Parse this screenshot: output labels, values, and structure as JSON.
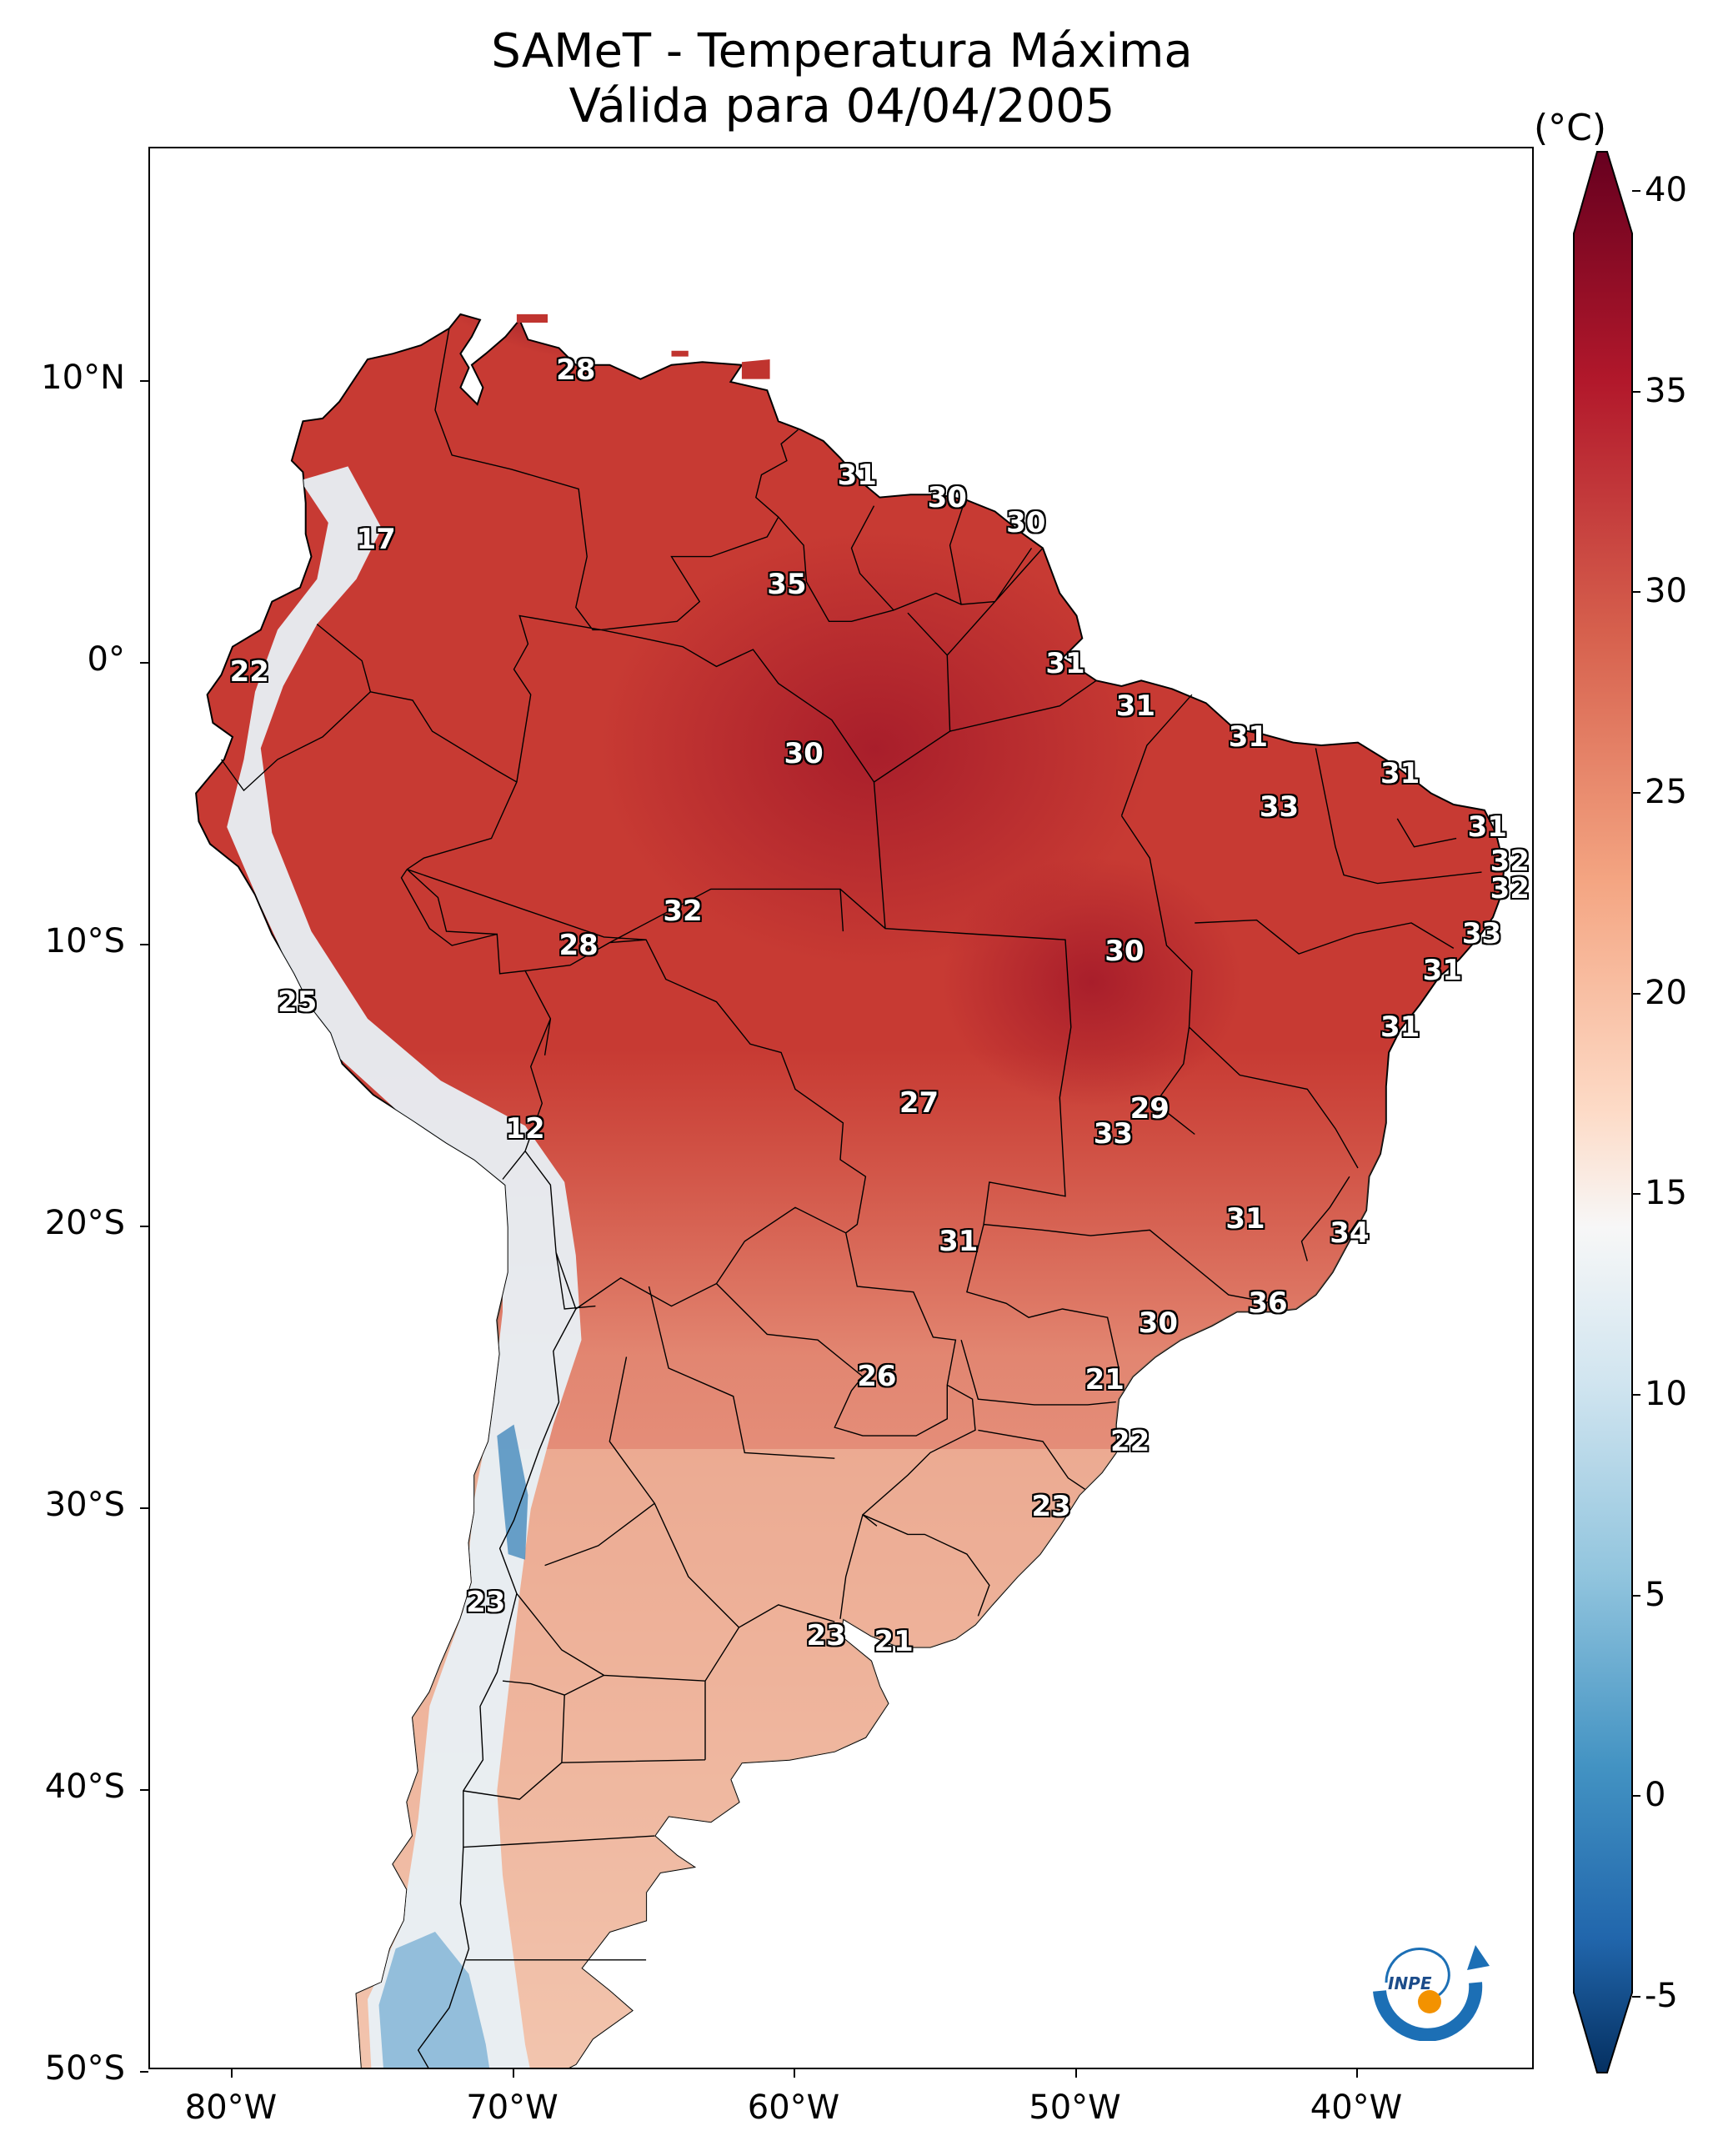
{
  "title": {
    "line1": "SAMeT - Temperatura Máxima",
    "line2": "Válida para 04/04/2005"
  },
  "axes": {
    "lat_ticks": [
      "10°N",
      "0°",
      "10°S",
      "20°S",
      "30°S",
      "40°S",
      "50°S"
    ],
    "lon_ticks": [
      "80°W",
      "70°W",
      "60°W",
      "50°W",
      "40°W"
    ]
  },
  "colorbar": {
    "unit": "(°C)",
    "range": [
      -7,
      41
    ],
    "ticks": [
      "40",
      "35",
      "30",
      "25",
      "20",
      "15",
      "10",
      "5",
      "0",
      "-5"
    ],
    "colors": {
      "dark_red": "#67001f",
      "red": "#b2182b",
      "orange_red": "#d6604d",
      "salmon": "#f4a582",
      "peach": "#fddbc7",
      "white": "#f7f7f7",
      "light_blue": "#d1e5f0",
      "sky_blue": "#92c5de",
      "blue": "#4393c3",
      "mid_blue": "#2166ac",
      "dark_blue": "#053061"
    }
  },
  "logo": {
    "text": "INPE"
  },
  "station_values": [
    {
      "label": "28",
      "lon": -67.8,
      "lat": 10.4
    },
    {
      "label": "31",
      "lon": -57.8,
      "lat": 6.7
    },
    {
      "label": "30",
      "lon": -54.6,
      "lat": 5.9
    },
    {
      "label": "30",
      "lon": -51.8,
      "lat": 5.0
    },
    {
      "label": "17",
      "lon": -74.9,
      "lat": 4.4
    },
    {
      "label": "35",
      "lon": -60.3,
      "lat": 2.8
    },
    {
      "label": "22",
      "lon": -79.4,
      "lat": -0.3
    },
    {
      "label": "31",
      "lon": -50.4,
      "lat": 0.0
    },
    {
      "label": "31",
      "lon": -47.9,
      "lat": -1.5
    },
    {
      "label": "31",
      "lon": -43.9,
      "lat": -2.6
    },
    {
      "label": "30",
      "lon": -59.7,
      "lat": -3.2
    },
    {
      "label": "31",
      "lon": -38.5,
      "lat": -3.9
    },
    {
      "label": "33",
      "lon": -42.8,
      "lat": -5.1
    },
    {
      "label": "31",
      "lon": -35.4,
      "lat": -5.8
    },
    {
      "label": "32",
      "lon": -34.6,
      "lat": -7.0
    },
    {
      "label": "32",
      "lon": -34.6,
      "lat": -8.0
    },
    {
      "label": "32",
      "lon": -64.0,
      "lat": -8.8
    },
    {
      "label": "33",
      "lon": -35.6,
      "lat": -9.6
    },
    {
      "label": "28",
      "lon": -67.7,
      "lat": -10.0
    },
    {
      "label": "30",
      "lon": -48.3,
      "lat": -10.2
    },
    {
      "label": "31",
      "lon": -37.0,
      "lat": -10.9
    },
    {
      "label": "25",
      "lon": -77.7,
      "lat": -12.0
    },
    {
      "label": "31",
      "lon": -38.5,
      "lat": -12.9
    },
    {
      "label": "27",
      "lon": -55.6,
      "lat": -15.6
    },
    {
      "label": "29",
      "lon": -47.4,
      "lat": -15.8
    },
    {
      "label": "12",
      "lon": -69.6,
      "lat": -16.5
    },
    {
      "label": "33",
      "lon": -48.7,
      "lat": -16.7
    },
    {
      "label": "31",
      "lon": -44.0,
      "lat": -19.7
    },
    {
      "label": "34",
      "lon": -40.3,
      "lat": -20.2
    },
    {
      "label": "31",
      "lon": -54.2,
      "lat": -20.5
    },
    {
      "label": "36",
      "lon": -43.2,
      "lat": -22.7
    },
    {
      "label": "30",
      "lon": -47.1,
      "lat": -23.4
    },
    {
      "label": "26",
      "lon": -57.1,
      "lat": -25.3
    },
    {
      "label": "21",
      "lon": -49.0,
      "lat": -25.4
    },
    {
      "label": "22",
      "lon": -48.1,
      "lat": -27.6
    },
    {
      "label": "23",
      "lon": -50.9,
      "lat": -29.9
    },
    {
      "label": "23",
      "lon": -71.0,
      "lat": -33.3
    },
    {
      "label": "23",
      "lon": -58.9,
      "lat": -34.5
    },
    {
      "label": "21",
      "lon": -56.5,
      "lat": -34.7
    }
  ]
}
